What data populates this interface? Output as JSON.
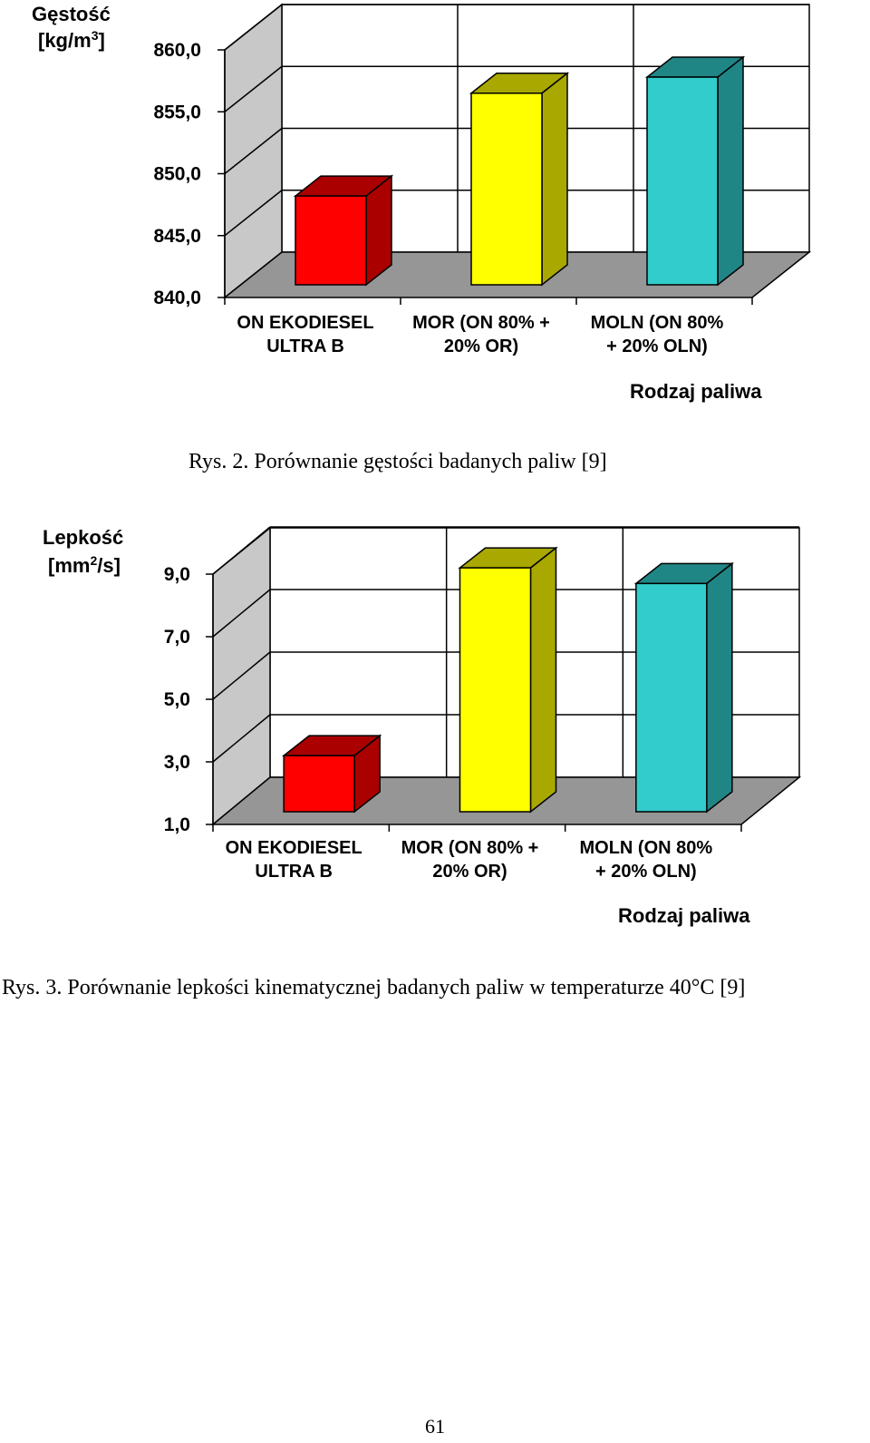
{
  "charts": [
    {
      "ylabel_line1": "Gęstość",
      "ylabel_line2_pre": "[kg/m",
      "ylabel_line2_sup": "3",
      "ylabel_line2_post": "]",
      "xlabel": "Rodzaj paliwa",
      "caption": "Rys. 2. Porównanie gęstości badanych paliw [9]"
    },
    {
      "ylabel_line1": "Lepkość",
      "ylabel_line2_pre": "[mm",
      "ylabel_line2_sup": "2",
      "ylabel_line2_post": "/s]",
      "xlabel": "Rodzaj paliwa",
      "caption": "Rys. 3. Porównanie lepkości kinematycznej badanych paliw w temperaturze 40°C [9]"
    }
  ],
  "chart_data": [
    {
      "type": "bar",
      "categories": [
        [
          "ON EKODIESEL",
          "ULTRA  B"
        ],
        [
          "MOR (ON 80% +",
          "20% OR)"
        ],
        [
          "MOLN (ON 80%",
          "+ 20% OLN)"
        ]
      ],
      "values": [
        848.2,
        856.5,
        857.8
      ],
      "tick_labels": [
        "840,0",
        "845,0",
        "850,0",
        "855,0",
        "860,0"
      ],
      "ylim": [
        840,
        860
      ],
      "ylabel": "Gęstość [kg/m3]",
      "xlabel": "Rodzaj paliwa",
      "grid": true,
      "colors": [
        "#ff0000",
        "#ffff00",
        "#33cccc"
      ],
      "side_colors": [
        "#aa0000",
        "#a8a800",
        "#208585"
      ]
    },
    {
      "type": "bar",
      "categories": [
        [
          "ON EKODIESEL",
          "ULTRA  B"
        ],
        [
          "MOR (ON 80% +",
          "20% OR)"
        ],
        [
          "MOLN (ON 80%",
          "+ 20% OLN)"
        ]
      ],
      "values": [
        3.2,
        9.2,
        8.7
      ],
      "tick_labels": [
        "1,0",
        "3,0",
        "5,0",
        "7,0",
        "9,0"
      ],
      "ylim": [
        1,
        9
      ],
      "ylabel": "Lepkość [mm2/s]",
      "xlabel": "Rodzaj paliwa",
      "grid": true,
      "colors": [
        "#ff0000",
        "#ffff00",
        "#33cccc"
      ],
      "side_colors": [
        "#aa0000",
        "#a8a800",
        "#208585"
      ]
    }
  ],
  "page_number": "61"
}
